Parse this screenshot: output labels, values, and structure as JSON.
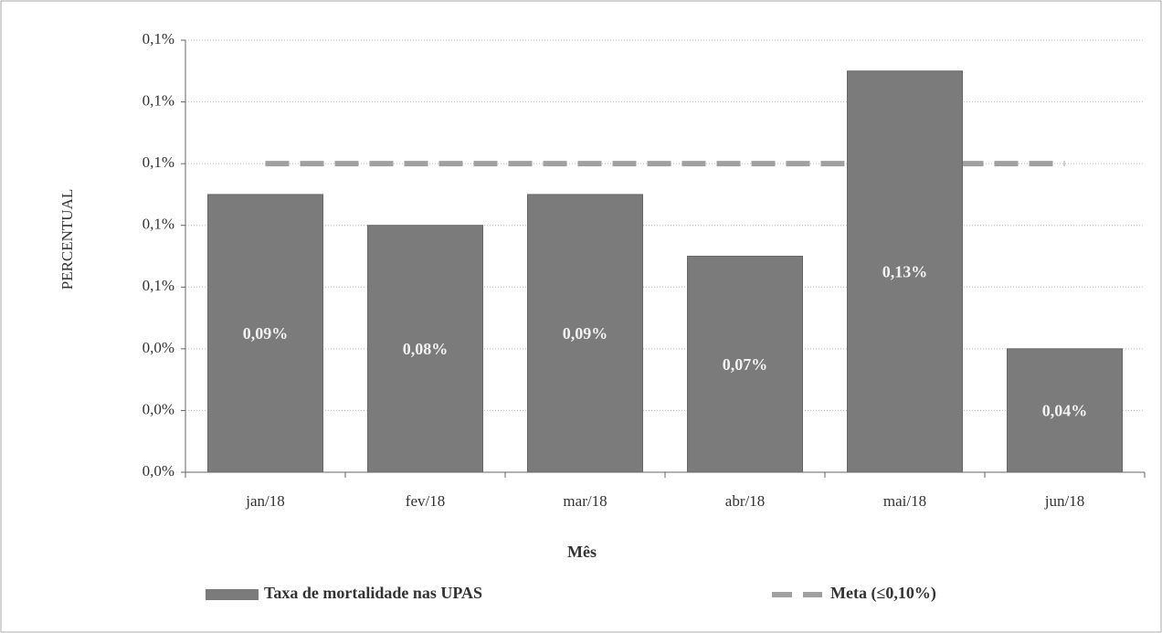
{
  "chart_data": {
    "type": "bar",
    "categories": [
      "jan/18",
      "fev/18",
      "mar/18",
      "abr/18",
      "mai/18",
      "jun/18"
    ],
    "series": [
      {
        "name": "Taxa de mortalidade nas UPAS",
        "type": "bar",
        "color": "#7b7b7b",
        "values": [
          0.09,
          0.08,
          0.09,
          0.07,
          0.13,
          0.04
        ],
        "value_labels": [
          "0,09%",
          "0,08%",
          "0,09%",
          "0,07%",
          "0,13%",
          "0,04%"
        ]
      },
      {
        "name": "Meta (≤0,10%)",
        "type": "line",
        "color": "#a0a0a0",
        "values": [
          0.1,
          0.1,
          0.1,
          0.1,
          0.1,
          0.1
        ]
      }
    ],
    "xlabel": "Mês",
    "ylabel": "PERCENTUAL",
    "ylim": [
      0,
      0.14
    ],
    "yticks": [
      {
        "value": 0,
        "label": "0,0%"
      },
      {
        "value": 0.02,
        "label": "0,0%"
      },
      {
        "value": 0.04,
        "label": "0,0%"
      },
      {
        "value": 0.06,
        "label": "0,1%"
      },
      {
        "value": 0.08,
        "label": "0,1%"
      },
      {
        "value": 0.1,
        "label": "0,1%"
      },
      {
        "value": 0.12,
        "label": "0,1%"
      },
      {
        "value": 0.14,
        "label": "0,1%"
      }
    ],
    "grid": true,
    "legend": "bottom"
  }
}
